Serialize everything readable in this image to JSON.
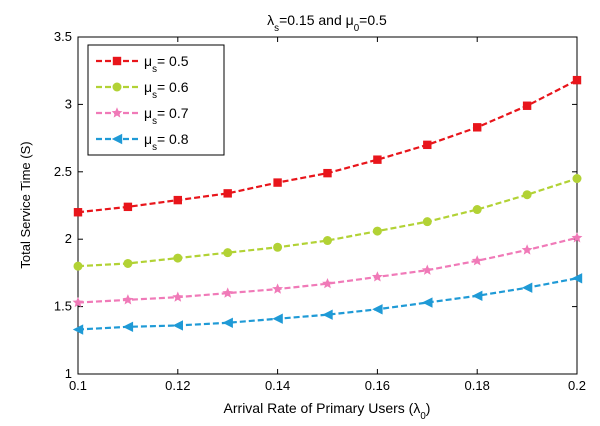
{
  "chart_data": {
    "type": "line",
    "title": {
      "parts": [
        {
          "text": "λ"
        },
        {
          "text": "s",
          "sub": true
        },
        {
          "text": "=0.15  and  μ"
        },
        {
          "text": "0",
          "sub": true
        },
        {
          "text": "=0.5"
        }
      ]
    },
    "xlabel": {
      "parts": [
        {
          "text": "Arrival Rate of Primary Users (λ"
        },
        {
          "text": "0",
          "sub": true
        },
        {
          "text": ")"
        }
      ]
    },
    "ylabel": "Total Service Time (S)",
    "xlim": [
      0.1,
      0.2
    ],
    "ylim": [
      1,
      3.5
    ],
    "xticks": [
      "0.1",
      "0.12",
      "0.14",
      "0.16",
      "0.18",
      "0.2"
    ],
    "yticks": [
      "1",
      "1.5",
      "2",
      "2.5",
      "3",
      "3.5"
    ],
    "grid": false,
    "legend_position": "top-left",
    "x": [
      0.1,
      0.11,
      0.12,
      0.13,
      0.14,
      0.15,
      0.16,
      0.17,
      0.18,
      0.19,
      0.2
    ],
    "series": [
      {
        "name_prefix": "μ",
        "name_sub": "s",
        "name_suffix": "= 0.5",
        "color": "#e8151b",
        "marker": "square",
        "values": [
          2.2,
          2.24,
          2.29,
          2.34,
          2.42,
          2.49,
          2.59,
          2.7,
          2.83,
          2.99,
          3.18
        ]
      },
      {
        "name_prefix": "μ",
        "name_sub": "s",
        "name_suffix": "= 0.6",
        "color": "#b2d235",
        "marker": "circle",
        "values": [
          1.8,
          1.82,
          1.86,
          1.9,
          1.94,
          1.99,
          2.06,
          2.13,
          2.22,
          2.33,
          2.45
        ]
      },
      {
        "name_prefix": "μ",
        "name_sub": "s",
        "name_suffix": "= 0.7",
        "color": "#f07ab8",
        "marker": "star",
        "values": [
          1.53,
          1.55,
          1.57,
          1.6,
          1.63,
          1.67,
          1.72,
          1.77,
          1.84,
          1.92,
          2.01
        ]
      },
      {
        "name_prefix": "μ",
        "name_sub": "s",
        "name_suffix": "= 0.8",
        "color": "#1f9ad6",
        "marker": "triangle-left",
        "values": [
          1.33,
          1.35,
          1.36,
          1.38,
          1.41,
          1.44,
          1.48,
          1.53,
          1.58,
          1.64,
          1.71
        ]
      }
    ]
  }
}
